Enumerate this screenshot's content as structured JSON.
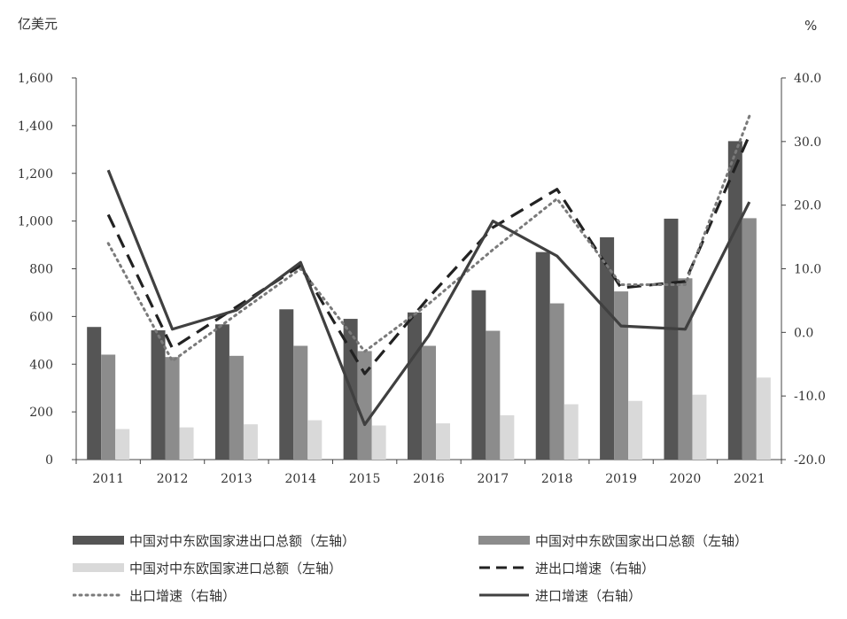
{
  "chart_data": {
    "type": "bar",
    "left_unit": "亿美元",
    "right_unit": "%",
    "categories": [
      "2011",
      "2012",
      "2013",
      "2014",
      "2015",
      "2016",
      "2017",
      "2018",
      "2019",
      "2020",
      "2021"
    ],
    "left_axis": {
      "range": [
        0,
        1600
      ],
      "ticks": [
        0,
        200,
        400,
        600,
        800,
        1000,
        1200,
        1400,
        1600
      ],
      "tick_labels": [
        "0",
        "200",
        "400",
        "600",
        "800",
        "1,000",
        "1,200",
        "1,400",
        "1,600"
      ]
    },
    "right_axis": {
      "range": [
        -20,
        40
      ],
      "ticks": [
        -20,
        -10,
        0,
        10,
        20,
        30,
        40
      ],
      "tick_labels": [
        "-20.0",
        "-10.0",
        "0.0",
        "10.0",
        "20.0",
        "30.0",
        "40.0"
      ]
    },
    "bar_series": [
      {
        "name": "中国对中东欧国家进出口总额（左轴）",
        "color": "#555555",
        "values": [
          556,
          542,
          567,
          630,
          590,
          617,
          710,
          870,
          932,
          1010,
          1335
        ]
      },
      {
        "name": "中国对中东欧国家出口总额（左轴）",
        "color": "#8c8c8c",
        "values": [
          440,
          430,
          435,
          477,
          455,
          477,
          540,
          655,
          705,
          760,
          1012
        ]
      },
      {
        "name": "中国对中东欧国家进口总额（左轴）",
        "color": "#d9d9d9",
        "values": [
          128,
          135,
          148,
          165,
          143,
          152,
          186,
          232,
          246,
          272,
          344
        ]
      }
    ],
    "line_series": [
      {
        "name": "进出口增速（右轴）",
        "color": "#222222",
        "style": "dashed",
        "values": [
          18.5,
          -2.5,
          4.0,
          10.5,
          -6.5,
          5.5,
          16.5,
          22.5,
          7.0,
          8.0,
          31.0
        ]
      },
      {
        "name": "出口增速（右轴）",
        "color": "#7a7a7a",
        "style": "dotted",
        "values": [
          14.0,
          -4.5,
          2.8,
          10.0,
          -3.0,
          4.5,
          13.0,
          21.0,
          7.5,
          7.5,
          34.0
        ]
      },
      {
        "name": "进口增速（右轴）",
        "color": "#404040",
        "style": "solid",
        "values": [
          25.5,
          0.5,
          3.5,
          11.0,
          -14.5,
          -0.5,
          17.5,
          12.0,
          1.0,
          0.5,
          20.5
        ]
      }
    ],
    "grid": false,
    "legend_position": "bottom"
  }
}
